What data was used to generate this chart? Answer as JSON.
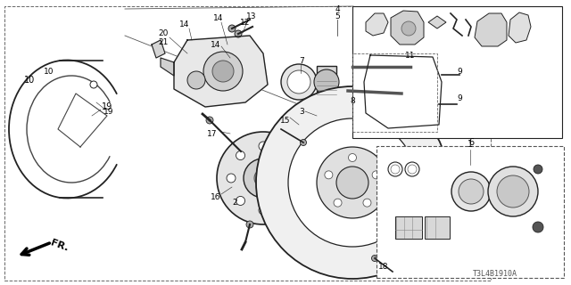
{
  "background_color": "#ffffff",
  "fig_width": 6.4,
  "fig_height": 3.2,
  "dpi": 100,
  "watermark": "T3L4B1910A",
  "line_color": "#222222",
  "light_gray": "#cccccc",
  "mid_gray": "#888888"
}
